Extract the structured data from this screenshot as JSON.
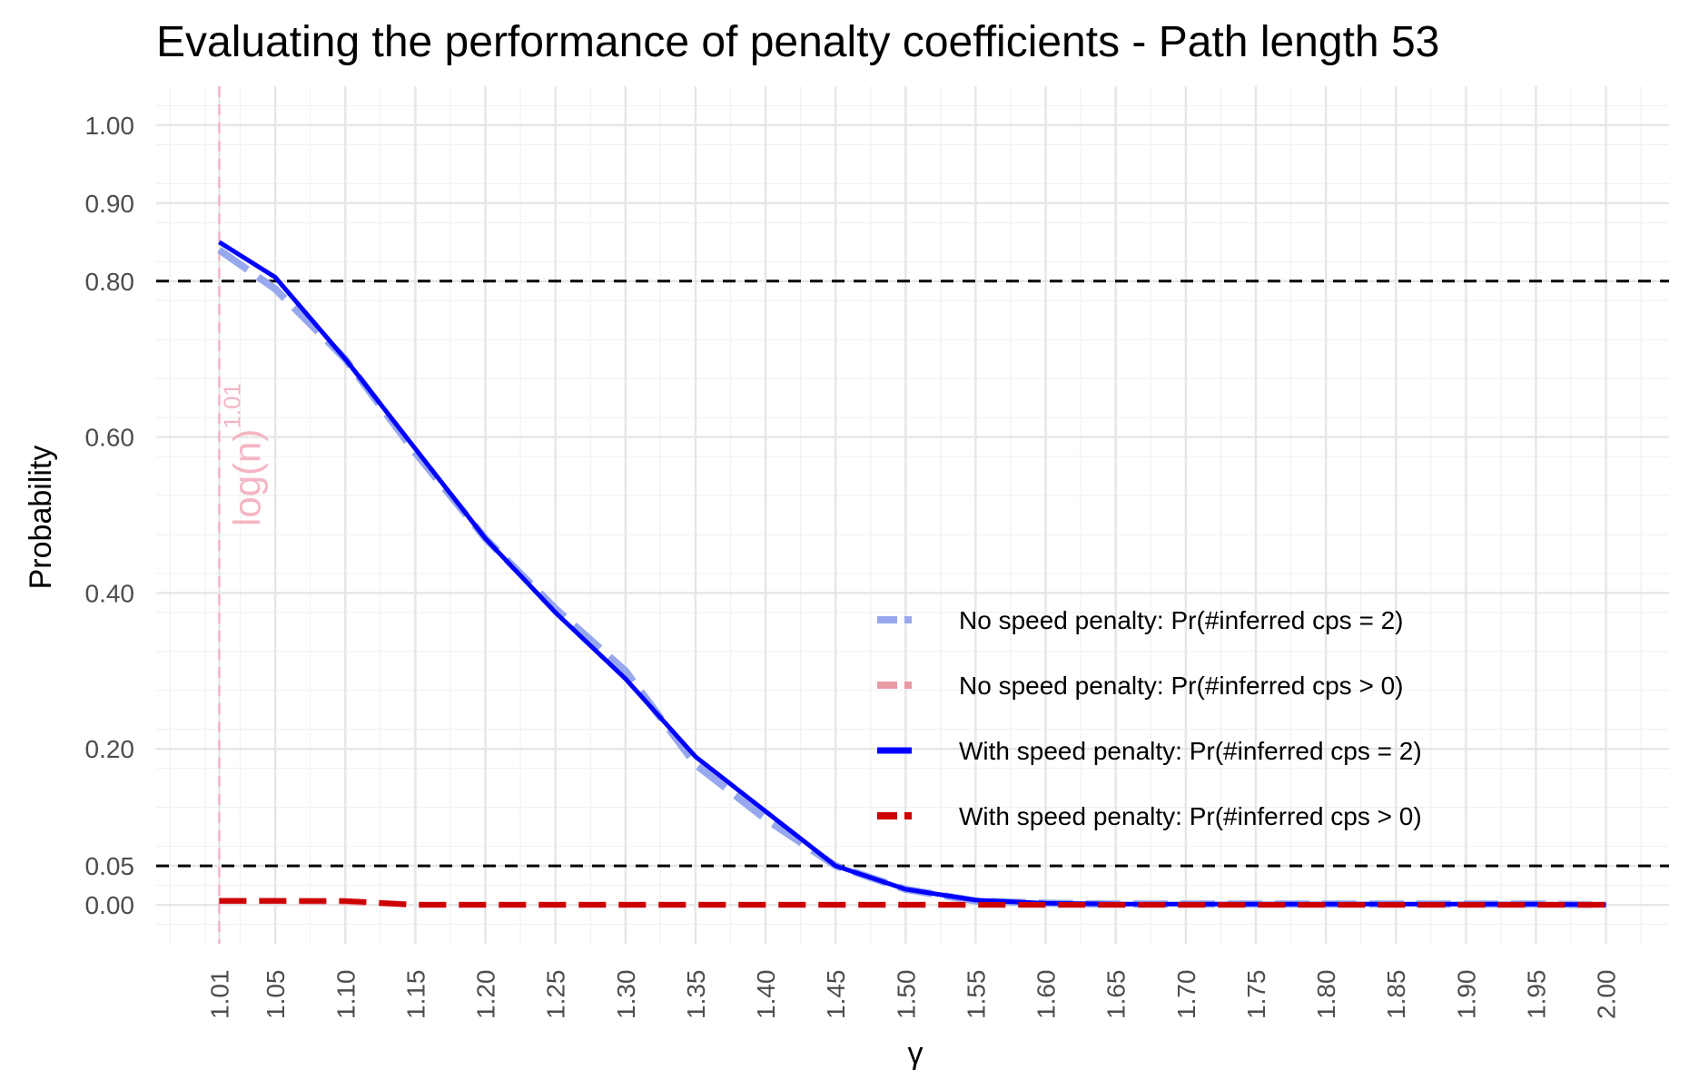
{
  "chart_data": {
    "type": "line",
    "title": "Evaluating the performance of penalty coefficients - Path length 53",
    "xlabel": "γ",
    "ylabel": "Probability",
    "x": [
      1.01,
      1.05,
      1.1,
      1.15,
      1.2,
      1.25,
      1.3,
      1.35,
      1.4,
      1.45,
      1.5,
      1.55,
      1.6,
      1.65,
      1.7,
      1.75,
      1.8,
      1.85,
      1.9,
      1.95,
      2.0
    ],
    "x_tick_labels": [
      "1.01",
      "1.05",
      "1.10",
      "1.15",
      "1.20",
      "1.25",
      "1.30",
      "1.35",
      "1.40",
      "1.45",
      "1.50",
      "1.55",
      "1.60",
      "1.65",
      "1.70",
      "1.75",
      "1.80",
      "1.85",
      "1.90",
      "1.95",
      "2.00"
    ],
    "y_ticks": [
      0.0,
      0.05,
      0.2,
      0.4,
      0.6,
      0.8,
      0.9,
      1.0
    ],
    "y_tick_labels": [
      "0.00",
      "0.05",
      "0.20",
      "0.40",
      "0.60",
      "0.80",
      "0.90",
      "1.00"
    ],
    "xlim": [
      0.965,
      2.045
    ],
    "ylim": [
      -0.05,
      1.05
    ],
    "grid": true,
    "legend_position": "right-center",
    "reference_lines": {
      "horizontal": [
        0.8,
        0.05
      ],
      "horizontal_color": "#000000",
      "vertical": 1.01,
      "vertical_color": "#f4b6c4",
      "vertical_label": "log(n)",
      "vertical_label_exponent": "1.01"
    },
    "series": [
      {
        "name": "No speed penalty: Pr(#inferred cps = 2)",
        "color": "#97a8ee",
        "style": "dashed",
        "values": [
          0.84,
          0.79,
          0.7,
          0.58,
          0.47,
          0.38,
          0.3,
          0.18,
          0.11,
          0.05,
          0.02,
          0.005,
          0.002,
          0.001,
          0.001,
          0.001,
          0.001,
          0.001,
          0.001,
          0.001,
          0.0
        ]
      },
      {
        "name": "No speed penalty: Pr(#inferred cps > 0)",
        "color": "#e89aa5",
        "style": "dashed",
        "values": [
          0.005,
          0.005,
          0.004,
          0.0,
          0.0,
          0.0,
          0.0,
          0.0,
          0.0,
          0.0,
          0.0,
          0.0,
          0.0,
          0.0,
          0.0,
          0.0,
          0.0,
          0.0,
          0.0,
          0.0,
          0.0
        ]
      },
      {
        "name": "With speed penalty: Pr(#inferred cps = 2)",
        "color": "#0000ff",
        "style": "solid",
        "values": [
          0.85,
          0.805,
          0.7,
          0.585,
          0.47,
          0.375,
          0.29,
          0.19,
          0.12,
          0.05,
          0.02,
          0.006,
          0.002,
          0.001,
          0.001,
          0.001,
          0.001,
          0.001,
          0.001,
          0.001,
          0.0
        ]
      },
      {
        "name": "With speed penalty: Pr(#inferred cps > 0)",
        "color": "#cc0000",
        "style": "dashed",
        "values": [
          0.005,
          0.005,
          0.005,
          0.0,
          0.0,
          0.0,
          0.0,
          0.0,
          0.0,
          0.0,
          0.0,
          0.0,
          0.0,
          0.0,
          0.0,
          0.0,
          0.0,
          0.0,
          0.0,
          0.0,
          0.0
        ]
      }
    ]
  }
}
